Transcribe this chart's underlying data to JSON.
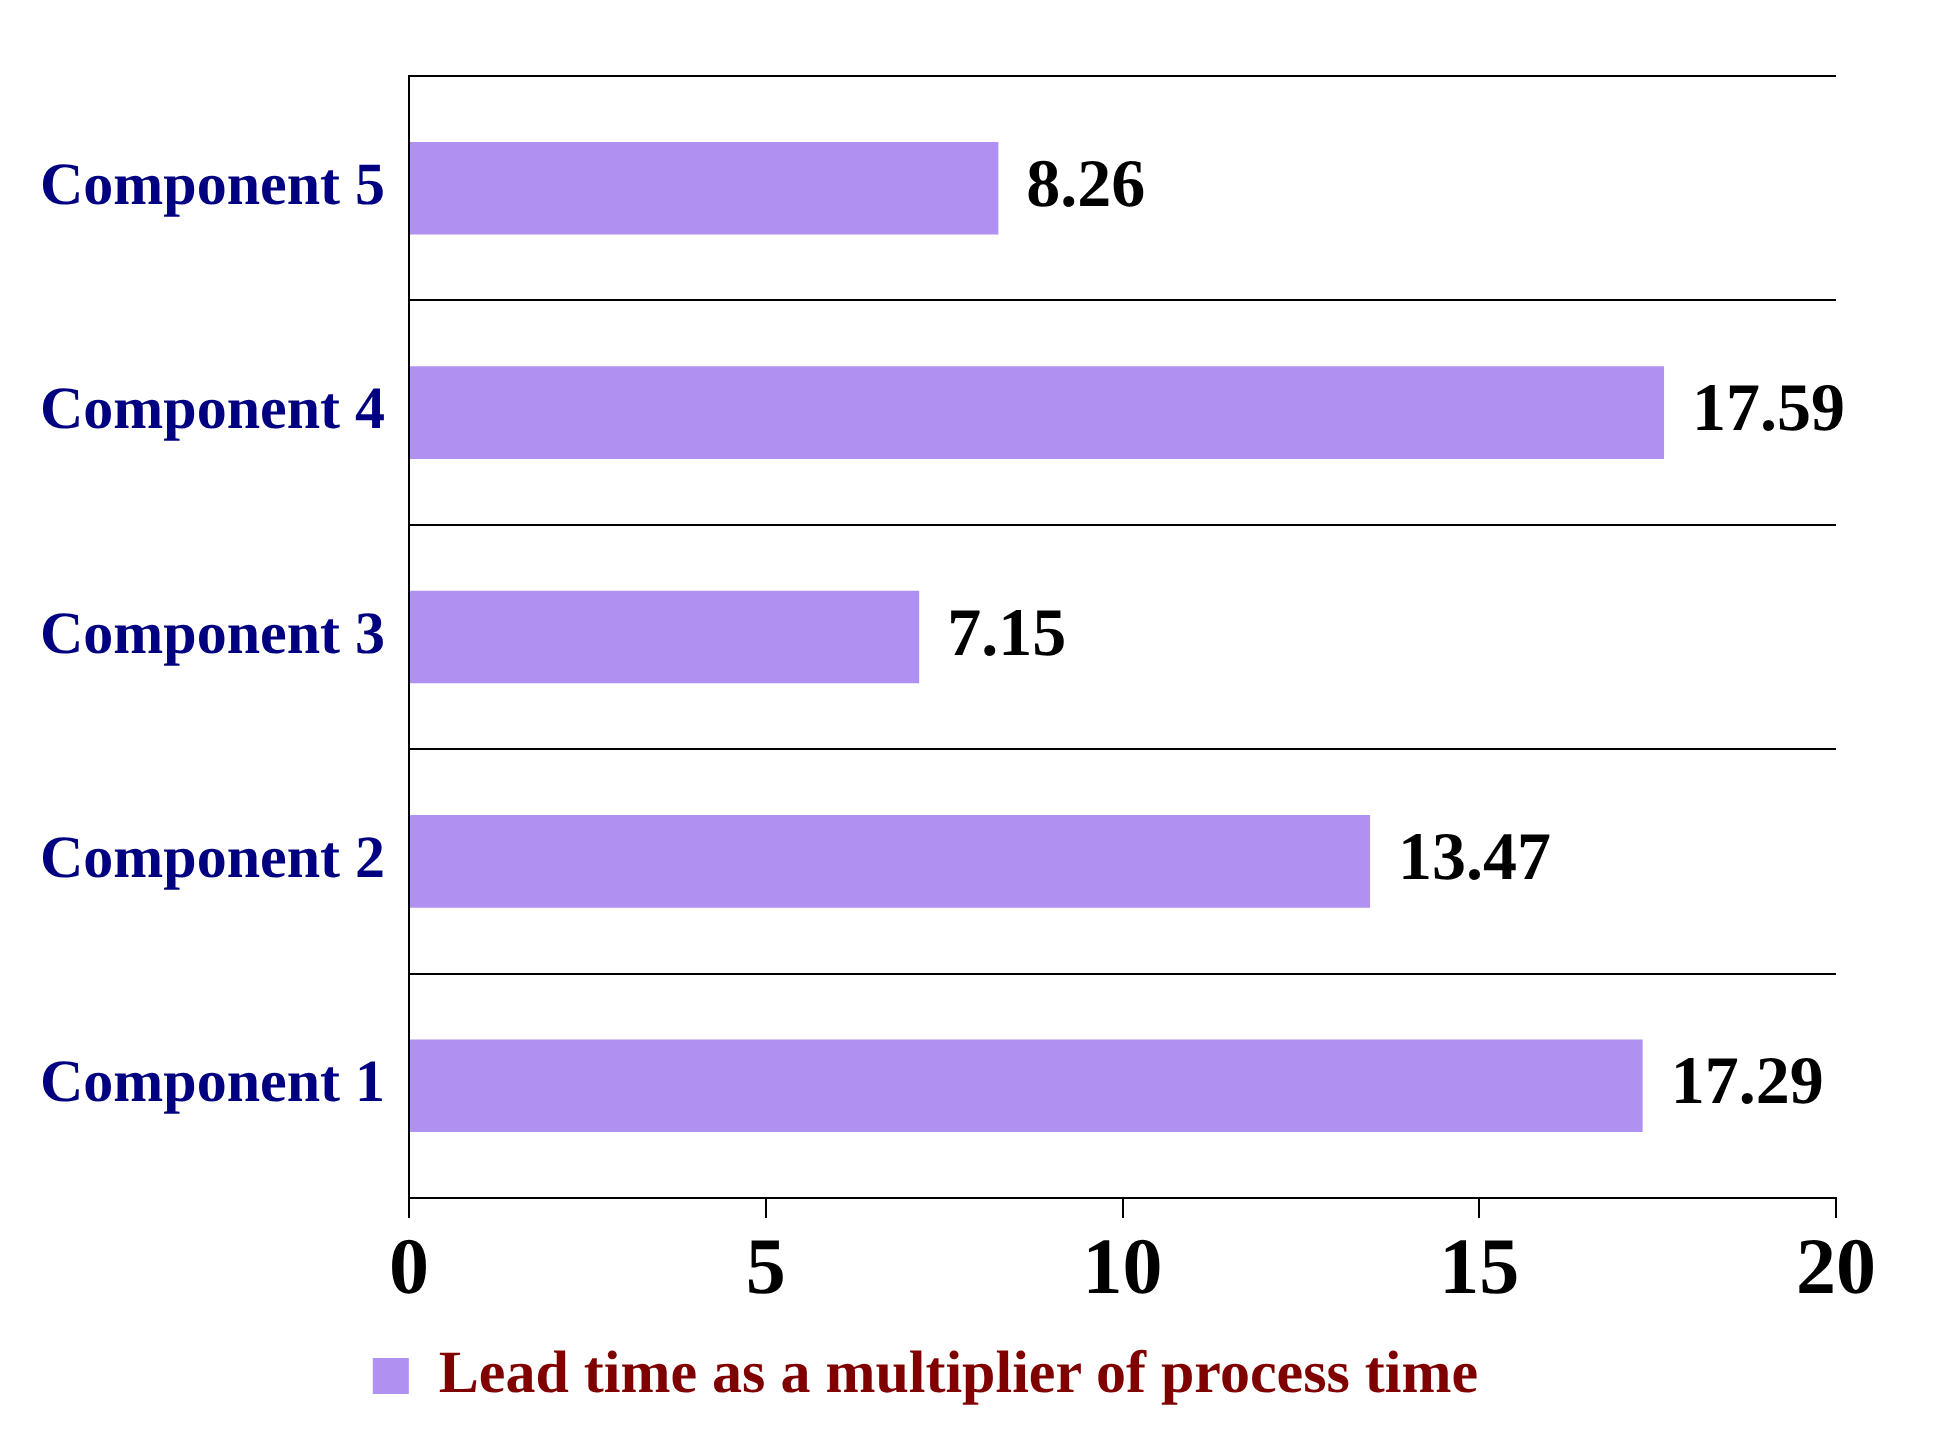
{
  "chart_data": {
    "type": "bar",
    "orientation": "horizontal",
    "categories": [
      "Component 5",
      "Component 4",
      "Component 3",
      "Component 2",
      "Component 1"
    ],
    "series": [
      {
        "name": "Lead time as a multiplier of process time",
        "color": "#b090f0",
        "values": [
          8.26,
          17.59,
          7.15,
          13.47,
          17.29
        ]
      }
    ],
    "xlim": [
      0,
      20
    ],
    "xticks": [
      0,
      5,
      10,
      15,
      20
    ],
    "grid": "y",
    "legend": "bottom",
    "data_labels": true
  }
}
